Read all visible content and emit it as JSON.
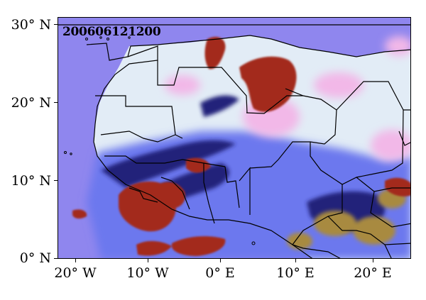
{
  "map": {
    "timestamp": "200606121200",
    "lat_labels": [
      "30° N",
      "20° N",
      "10° N",
      "0° N"
    ],
    "lon_labels": [
      "20° W",
      "10° W",
      "0° E",
      "10° E",
      "20° E"
    ],
    "colors": {
      "ocean": "#8f86ee",
      "sahara": "#e2ecf6",
      "pink_dust": "#f2b8e8",
      "sahel_blue": "#6c78ee",
      "deep_cloud_red": "#a32a1c",
      "ice_cloud_dark": "#23237a",
      "olive_cloud": "#a88a40",
      "border": "#000000"
    }
  }
}
